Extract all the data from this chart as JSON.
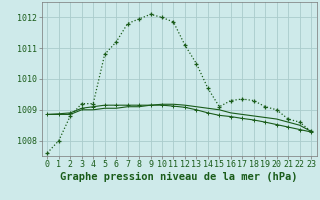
{
  "title": "Graphe pression niveau de la mer (hPa)",
  "background_color": "#ceeaea",
  "grid_color": "#aacccc",
  "line_color": "#1a5c1a",
  "series1": [
    1007.6,
    1008.0,
    1008.8,
    1009.2,
    1009.2,
    1010.8,
    1011.2,
    1011.8,
    1011.95,
    1012.1,
    1012.0,
    1011.85,
    1011.1,
    1010.5,
    1009.7,
    1009.1,
    1009.3,
    1009.35,
    1009.3,
    1009.1,
    1009.0,
    1008.7,
    1008.6,
    1008.3
  ],
  "series2": [
    1008.85,
    1008.85,
    1008.85,
    1009.0,
    1009.0,
    1009.05,
    1009.05,
    1009.1,
    1009.1,
    1009.15,
    1009.18,
    1009.18,
    1009.15,
    1009.1,
    1009.05,
    1009.0,
    1008.9,
    1008.85,
    1008.8,
    1008.75,
    1008.7,
    1008.6,
    1008.5,
    1008.3
  ],
  "series3": [
    1008.85,
    1008.87,
    1008.9,
    1009.05,
    1009.1,
    1009.15,
    1009.15,
    1009.15,
    1009.15,
    1009.15,
    1009.15,
    1009.12,
    1009.08,
    1009.0,
    1008.9,
    1008.82,
    1008.78,
    1008.72,
    1008.67,
    1008.6,
    1008.52,
    1008.44,
    1008.36,
    1008.28
  ],
  "ylim": [
    1007.5,
    1012.5
  ],
  "yticks": [
    1008,
    1009,
    1010,
    1011,
    1012
  ],
  "xlim": [
    -0.5,
    23.5
  ],
  "title_fontsize": 7.5,
  "tick_fontsize": 6.0
}
